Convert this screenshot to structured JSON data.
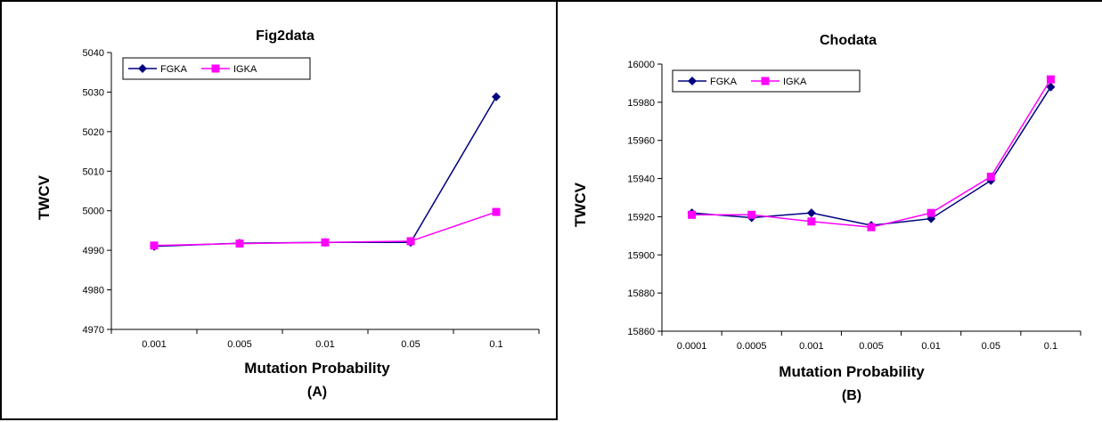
{
  "chart_data": [
    {
      "type": "line",
      "title": "Fig2data",
      "xlabel": "Mutation Probability",
      "ylabel": "TWCV",
      "panel_label": "(A)",
      "categories": [
        "0.001",
        "0.005",
        "0.01",
        "0.05",
        "0.1"
      ],
      "ylim": [
        4970,
        5040
      ],
      "yticks": [
        4970,
        4980,
        4990,
        5000,
        5010,
        5020,
        5030,
        5040
      ],
      "grid": false,
      "legend": "top-left",
      "series": [
        {
          "name": "FGKA",
          "color": "#000080",
          "marker": "diamond",
          "values": [
            4991,
            4991.8,
            4992,
            4992,
            5028.8
          ]
        },
        {
          "name": "IGKA",
          "color": "#ff00ff",
          "marker": "square",
          "values": [
            4991.2,
            4991.7,
            4992,
            4992.3,
            4999.7
          ]
        }
      ]
    },
    {
      "type": "line",
      "title": "Chodata",
      "xlabel": "Mutation Probability",
      "ylabel": "TWCV",
      "panel_label": "(B)",
      "categories": [
        "0.0001",
        "0.0005",
        "0.001",
        "0.005",
        "0.01",
        "0.05",
        "0.1"
      ],
      "ylim": [
        15860,
        16000
      ],
      "yticks": [
        15860,
        15880,
        15900,
        15920,
        15940,
        15960,
        15980,
        16000
      ],
      "grid": false,
      "legend": "top-left",
      "series": [
        {
          "name": "FGKA",
          "color": "#000080",
          "marker": "diamond",
          "values": [
            15922,
            15919.5,
            15922,
            15915.5,
            15919,
            15939,
            15988
          ]
        },
        {
          "name": "IGKA",
          "color": "#ff00ff",
          "marker": "square",
          "values": [
            15921,
            15921,
            15917.5,
            15914.5,
            15922,
            15941,
            15992
          ]
        }
      ]
    }
  ]
}
